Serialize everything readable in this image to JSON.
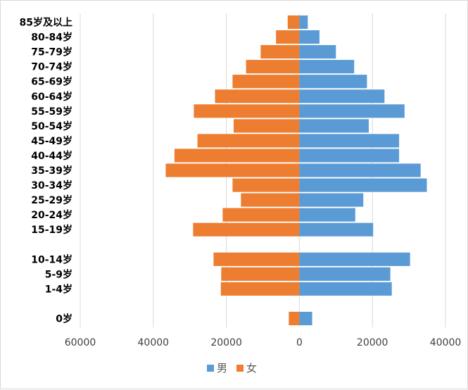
{
  "chart_data": {
    "type": "bar",
    "orientation": "horizontal",
    "chart_subtype": "population-pyramid",
    "categories": [
      "85岁及以上",
      "80-84岁",
      "75-79岁",
      "70-74岁",
      "65-69岁",
      "60-64岁",
      "55-59岁",
      "50-54岁",
      "45-49岁",
      "40-44岁",
      "35-39岁",
      "30-34岁",
      "25-29岁",
      "20-24岁",
      "15-19岁",
      "",
      "10-14岁",
      "5-9岁",
      "1-4岁",
      "",
      "0岁"
    ],
    "series": [
      {
        "name": "男",
        "color": "#5b9bd5",
        "values": [
          2300,
          5500,
          10000,
          15000,
          18500,
          23300,
          28800,
          19000,
          27300,
          27300,
          33200,
          34900,
          17500,
          15300,
          20200,
          null,
          30300,
          24900,
          25300,
          null,
          3500
        ]
      },
      {
        "name": "女",
        "color": "#ed7d31",
        "values": [
          -3200,
          -6400,
          -10600,
          -14600,
          -18300,
          -23100,
          -28900,
          -18000,
          -27900,
          -34200,
          -36600,
          -18300,
          -16000,
          -21000,
          -29100,
          null,
          -23500,
          -21400,
          -21500,
          null,
          -2900
        ]
      }
    ],
    "xlim": [
      -60000,
      40000
    ],
    "x_ticks": [
      -60000,
      -40000,
      -20000,
      0,
      20000,
      40000
    ],
    "x_tick_labels": [
      "60000",
      "40000",
      "20000",
      "0",
      "20000",
      "40000"
    ],
    "grid": "vertical",
    "legend_position": "bottom"
  }
}
